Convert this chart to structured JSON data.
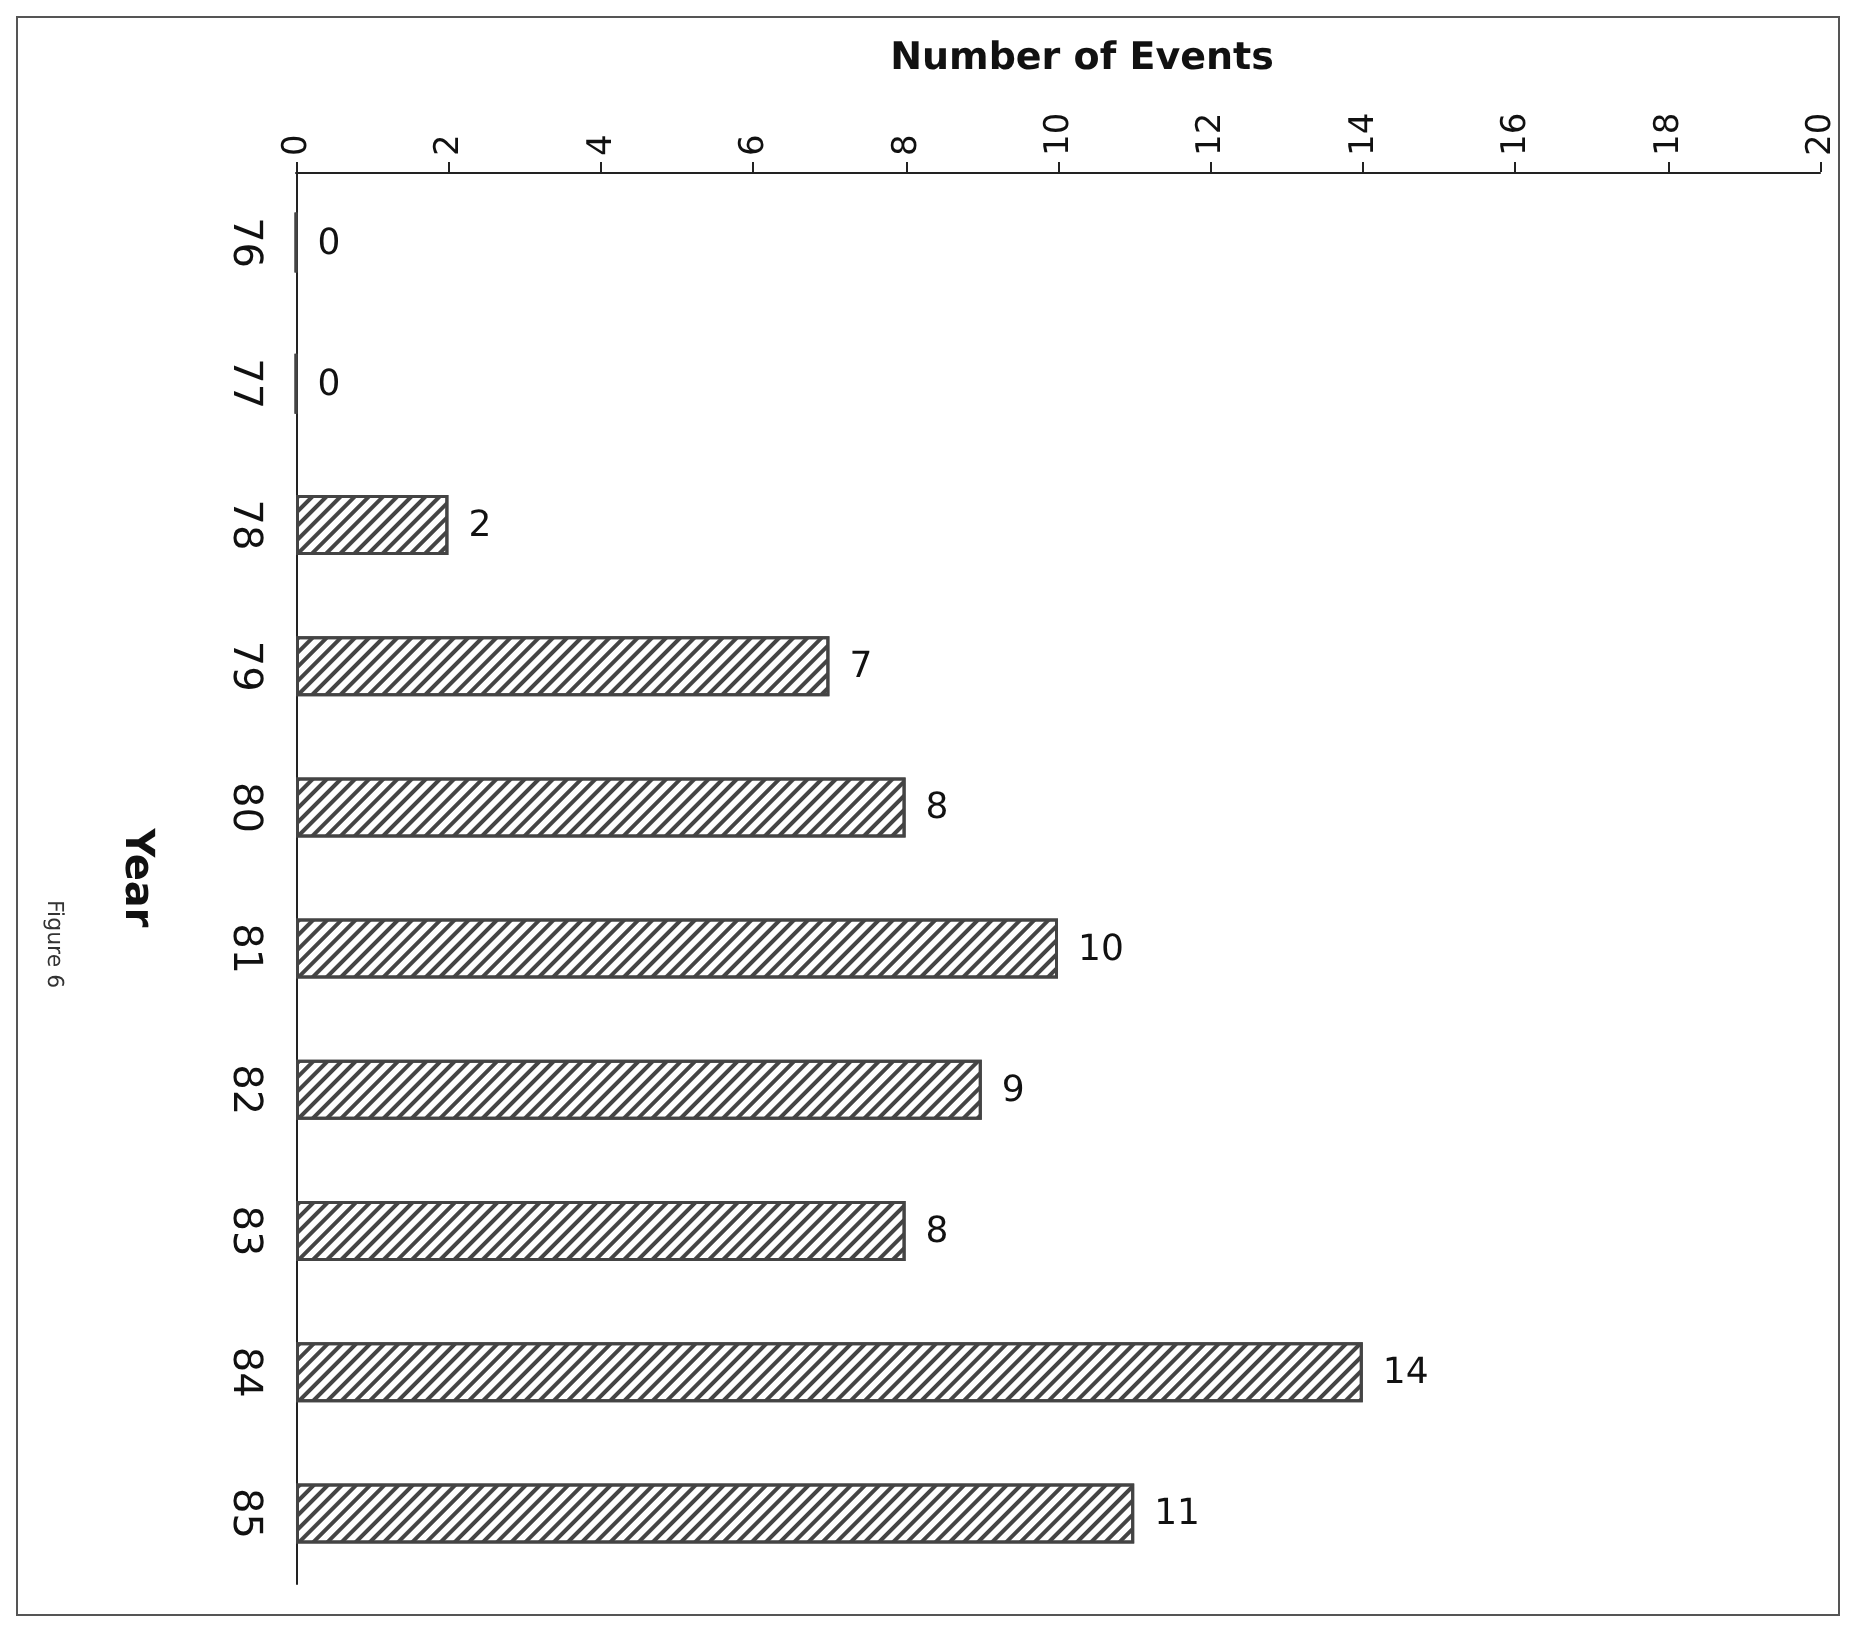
{
  "chart_data": {
    "type": "bar",
    "orientation": "horizontal",
    "title": "Number of Events",
    "ylabel": "Year",
    "categories": [
      "76",
      "77",
      "78",
      "79",
      "80",
      "81",
      "82",
      "83",
      "84",
      "85"
    ],
    "values": [
      0,
      0,
      2,
      7,
      8,
      10,
      9,
      8,
      14,
      11
    ],
    "color": "#444444",
    "xlim": [
      0,
      20
    ],
    "xticks": [
      0,
      2,
      4,
      6,
      8,
      10,
      12,
      14,
      16,
      18,
      20
    ],
    "grid": false,
    "data_labels": true,
    "annotations": [
      "Figure 6"
    ]
  }
}
